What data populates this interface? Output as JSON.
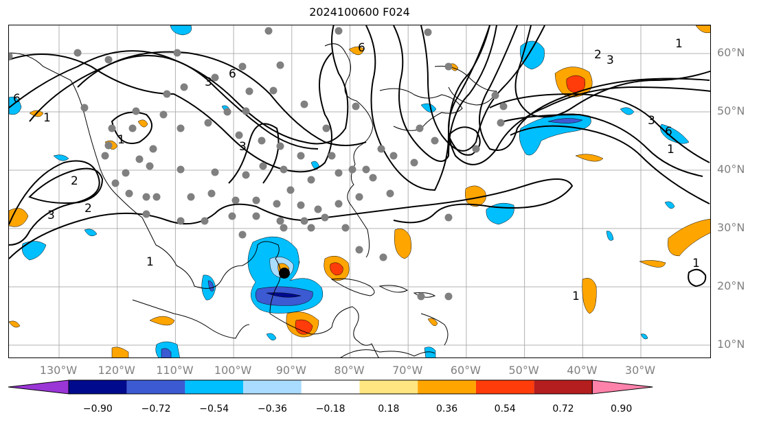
{
  "title": "2024100600 F024",
  "latitude_labels": [
    {
      "value": 60,
      "label": "60°N"
    },
    {
      "value": 50,
      "label": "50°N"
    },
    {
      "value": 40,
      "label": "40°N"
    },
    {
      "value": 30,
      "label": "30°N"
    },
    {
      "value": 20,
      "label": "20°N"
    },
    {
      "value": 10,
      "label": "10°N"
    }
  ],
  "longitude_labels": [
    {
      "value": -130,
      "label": "130°W"
    },
    {
      "value": -120,
      "label": "120°W"
    },
    {
      "value": -110,
      "label": "110°W"
    },
    {
      "value": -100,
      "label": "100°W"
    },
    {
      "value": -90,
      "label": "90°W"
    },
    {
      "value": -80,
      "label": "80°W"
    },
    {
      "value": -70,
      "label": "70°W"
    },
    {
      "value": -60,
      "label": "60°W"
    },
    {
      "value": -50,
      "label": "50°W"
    },
    {
      "value": -40,
      "label": "40°W"
    },
    {
      "value": -30,
      "label": "30°W"
    }
  ],
  "colorbar": {
    "levels": [
      "−0.90",
      "−0.72",
      "−0.54",
      "−0.36",
      "−0.18",
      "0.18",
      "0.36",
      "0.54",
      "0.72",
      "0.90"
    ],
    "colors": [
      "#9a35d6",
      "#000a8c",
      "#3c5ad2",
      "#00bfff",
      "#aadcff",
      "#ffffff",
      "#ffe680",
      "#ffa500",
      "#ff3c0a",
      "#b41e1e",
      "#ff82aa"
    ]
  },
  "contour_labels": [
    "6",
    "3",
    "1",
    "2",
    "1",
    "3",
    "2",
    "3",
    "1",
    "6",
    "6",
    "3",
    "2",
    "1",
    "3",
    "6",
    "1",
    "1",
    "1"
  ],
  "colors": {
    "grid": "#b0b0b0",
    "tick_label": "#808080",
    "contour": "#000000",
    "station_dot": "#808080"
  }
}
